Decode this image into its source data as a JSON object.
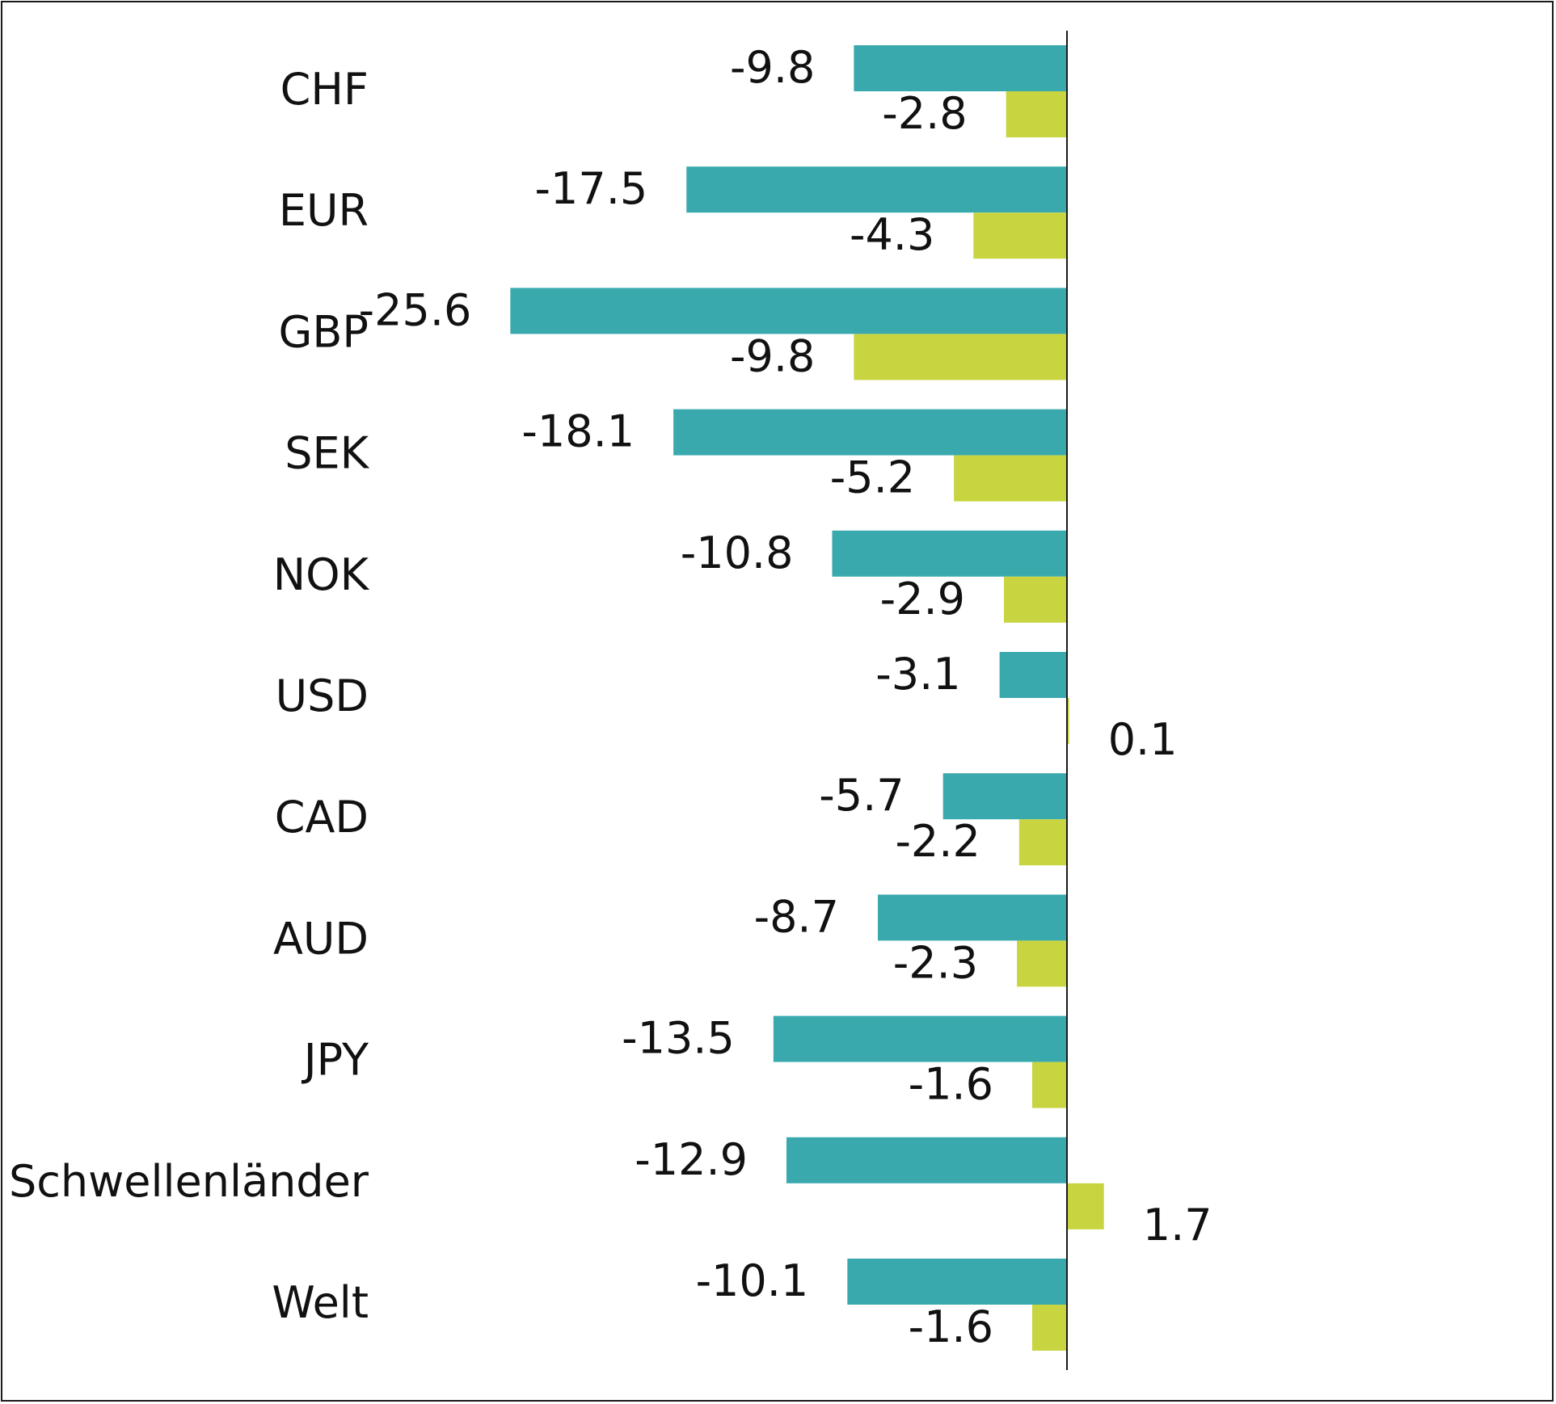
{
  "chart_data": {
    "type": "bar",
    "orientation": "horizontal",
    "title": "",
    "xlabel": "",
    "ylabel": "",
    "grid": false,
    "legend": "none",
    "xlim": [
      -25.6,
      7.0
    ],
    "categories": [
      "CHF",
      "EUR",
      "GBP",
      "SEK",
      "NOK",
      "USD",
      "CAD",
      "AUD",
      "JPY",
      "Schwellenländer",
      "Welt"
    ],
    "series": [
      {
        "color": "#3aa9ae",
        "values": [
          -9.8,
          -17.5,
          -25.6,
          -18.1,
          -10.8,
          -3.1,
          -5.7,
          -8.7,
          -13.5,
          -12.9,
          -10.1
        ],
        "labels": [
          "-9.8",
          "-17.5",
          "-25.6",
          "-18.1",
          "-10.8",
          "-3.1",
          "-5.7",
          "-8.7",
          "-13.5",
          "-12.9",
          "-10.1"
        ]
      },
      {
        "color": "#c8d540",
        "values": [
          -2.8,
          -4.3,
          -9.8,
          -5.2,
          -2.9,
          0.1,
          -2.2,
          -2.3,
          -1.6,
          1.7,
          -1.6
        ],
        "labels": [
          "-2.8",
          "-4.3",
          "-9.8",
          "-5.2",
          "-2.9",
          "0.1",
          "-2.2",
          "-2.3",
          "-1.6",
          "1.7",
          "-1.6"
        ]
      }
    ]
  }
}
